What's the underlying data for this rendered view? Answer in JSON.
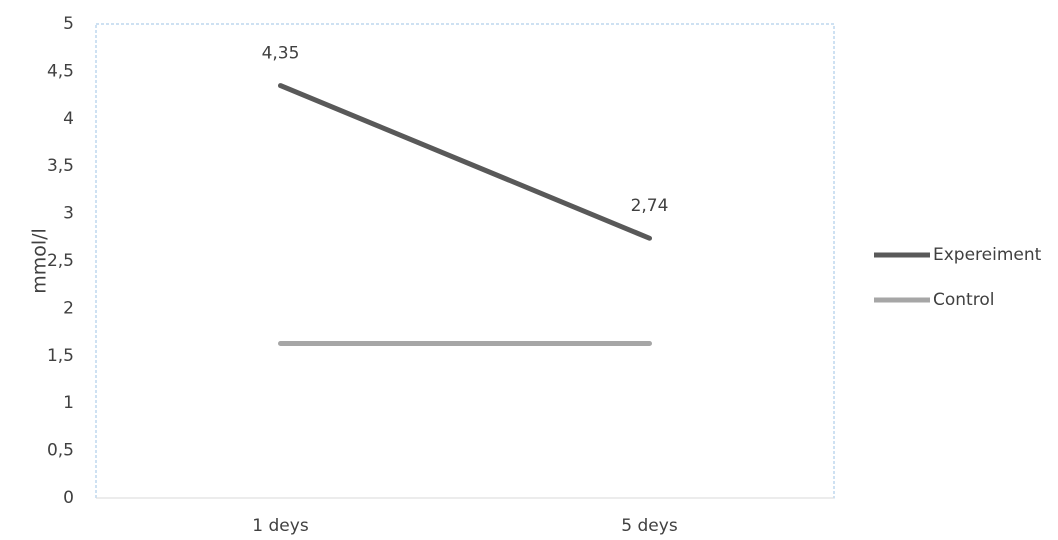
{
  "chart_data": {
    "type": "line",
    "title": "",
    "xlabel": "",
    "ylabel": "mmol/l",
    "categories": [
      "1 deys",
      "5 deys"
    ],
    "ylim": [
      0,
      5
    ],
    "yticks": [
      "0",
      "0,5",
      "1",
      "1,5",
      "2",
      "2,5",
      "3",
      "3,5",
      "4",
      "4,5",
      "5"
    ],
    "grid": false,
    "legend_position": "right",
    "series": [
      {
        "name": "Expereiment",
        "values": [
          4.35,
          2.74
        ],
        "color": "#595959",
        "data_labels": [
          "4,35",
          "2,74"
        ]
      },
      {
        "name": "Control",
        "values": [
          1.63,
          1.63
        ],
        "color": "#a6a6a6",
        "data_labels": []
      }
    ]
  }
}
